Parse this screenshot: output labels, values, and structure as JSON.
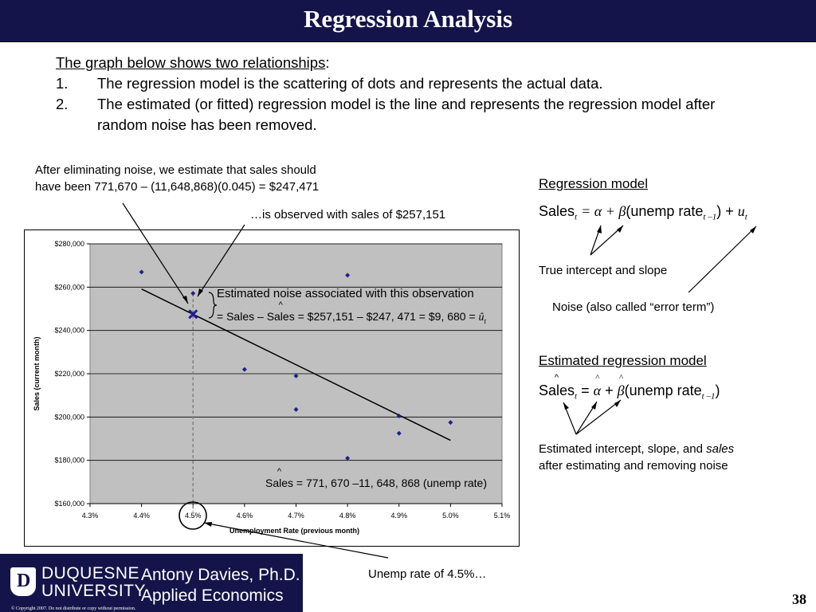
{
  "slide": {
    "title": "Regression Analysis",
    "page_number": "38"
  },
  "intro": {
    "lead": "The graph below shows two relationships",
    "lead_colon": ":",
    "items": [
      {
        "num": "1.",
        "text": "The regression model is the scattering of dots and represents the actual data."
      },
      {
        "num": "2.",
        "text": "The estimated (or fitted) regression model is the line and represents the regression model after random noise has been removed."
      }
    ]
  },
  "annotations": {
    "after_noise_line1": "After eliminating noise, we estimate that sales should",
    "after_noise_line2": "have been 771,670 – (11,648,868)(0.045) = $247,471",
    "observed": "…is observed with sales of $257,151",
    "noise_title": "Estimated noise associated with this observation",
    "noise_eq_eq": "=",
    "noise_eq_sales": "Sales",
    "noise_eq_minus": "–",
    "noise_eq_saleshat": "Sales",
    "noise_eq_rest": "= $257,151 – $247, 471 = $9, 680 =",
    "noise_eq_u": "û",
    "noise_eq_sub": "t",
    "fitted_eq_sales": "Sales",
    "fitted_eq_rest": "= 771, 670 –11, 648, 868 (unemp rate)",
    "unemp_rate": "Unemp rate of 4.5%…"
  },
  "regression_model": {
    "heading": "Regression model",
    "eq_sales": "Sales",
    "eq_t": "t",
    "eq_eq": "= α + β",
    "eq_mid": "(unemp rate",
    "eq_sub": "t –1",
    "eq_end": ") + ",
    "eq_u": "u",
    "eq_ut": "t",
    "true_intercept": "True intercept and slope",
    "noise": "Noise (also called “error term”)"
  },
  "estimated_model": {
    "heading": "Estimated regression model",
    "eq_sales": "Sales",
    "eq_t": "t",
    "eq_eq": "=",
    "eq_alpha": "α",
    "eq_plus": "+",
    "eq_beta": "β",
    "eq_mid": "(unemp rate",
    "eq_sub": "t –1",
    "eq_end": ")",
    "desc_pre": "Estimated intercept, slope, and ",
    "desc_em": "sales",
    "desc_line2": "after estimating and removing noise"
  },
  "logo": {
    "name_line1": "DUQUESNE",
    "name_line2": "UNIVERSITY",
    "professor": "Antony Davies, Ph.D.",
    "department": "Applied Economics",
    "copyright": "© Copyright 2007. Do not distribute or copy without permission."
  },
  "colors": {
    "title_bar": "#14144a",
    "plot_area": "#c0c0c0",
    "marker": "#1f1f8f"
  },
  "chart_data": {
    "type": "scatter",
    "xlabel": "Unemployment Rate (previous month)",
    "ylabel": "Sales (current month)",
    "xlim": [
      4.3,
      5.1
    ],
    "ylim": [
      160000,
      280000
    ],
    "x_ticks": [
      4.3,
      4.4,
      4.5,
      4.6,
      4.7,
      4.8,
      4.9,
      5.0,
      5.1
    ],
    "x_tick_labels": [
      "4.3%",
      "4.4%",
      "4.5%",
      "4.6%",
      "4.7%",
      "4.8%",
      "4.9%",
      "5.0%",
      "5.1%"
    ],
    "y_ticks": [
      160000,
      180000,
      200000,
      220000,
      240000,
      260000,
      280000
    ],
    "y_tick_labels": [
      "$160,000",
      "$180,000",
      "$200,000",
      "$220,000",
      "$240,000",
      "$260,000",
      "$280,000"
    ],
    "grid": true,
    "points": [
      {
        "x": 4.4,
        "y": 267000
      },
      {
        "x": 4.5,
        "y": 257151
      },
      {
        "x": 4.6,
        "y": 222000
      },
      {
        "x": 4.7,
        "y": 219000
      },
      {
        "x": 4.7,
        "y": 203500
      },
      {
        "x": 4.8,
        "y": 265500
      },
      {
        "x": 4.8,
        "y": 181000
      },
      {
        "x": 4.9,
        "y": 200500
      },
      {
        "x": 4.9,
        "y": 192500
      },
      {
        "x": 5.0,
        "y": 197500
      }
    ],
    "fitted_line": {
      "intercept": 771670,
      "slope": -11648868,
      "x_start": 4.4,
      "x_end": 5.0
    },
    "highlight": {
      "x": 4.5,
      "y_observed": 257151,
      "y_fitted": 247471
    }
  }
}
